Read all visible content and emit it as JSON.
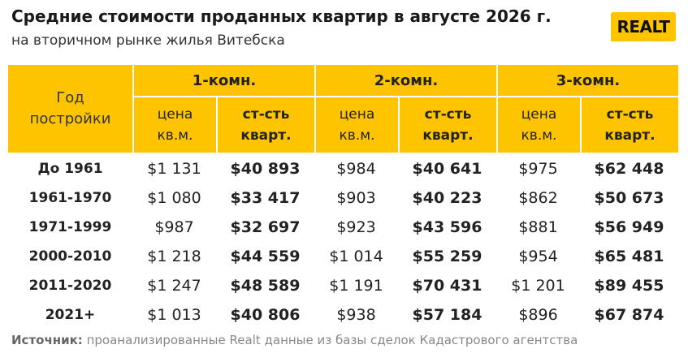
{
  "header": {
    "title": "Средние стоимости проданных квартир в августе 2026 г.",
    "subtitle": "на вторичном рынке жилья Витебска",
    "logo": "REALT"
  },
  "table": {
    "corner": "Год постройки",
    "groups": [
      "1-комн.",
      "2-комн.",
      "3-комн."
    ],
    "subheaders": [
      "цена кв.м.",
      "ст-сть кварт."
    ],
    "rows": [
      [
        "До 1961",
        "$1 131",
        "$40 893",
        "$984",
        "$40 641",
        "$975",
        "$62 448"
      ],
      [
        "1961-1970",
        "$1 080",
        "$33 417",
        "$903",
        "$40 223",
        "$862",
        "$50 673"
      ],
      [
        "1971-1999",
        "$987",
        "$32 697",
        "$923",
        "$43 596",
        "$881",
        "$56 949"
      ],
      [
        "2000-2010",
        "$1 218",
        "$44 559",
        "$1 014",
        "$55 259",
        "$954",
        "$65 481"
      ],
      [
        "2011-2020",
        "$1 247",
        "$48 589",
        "$1 191",
        "$70 431",
        "$1 201",
        "$89 455"
      ],
      [
        "2021+",
        "$1 013",
        "$40 806",
        "$938",
        "$57 184",
        "$896",
        "$67 874"
      ]
    ]
  },
  "source": {
    "label": "Источник:",
    "text": "проанализированные Realt данные из базы сделок Кадастрового агентства"
  }
}
